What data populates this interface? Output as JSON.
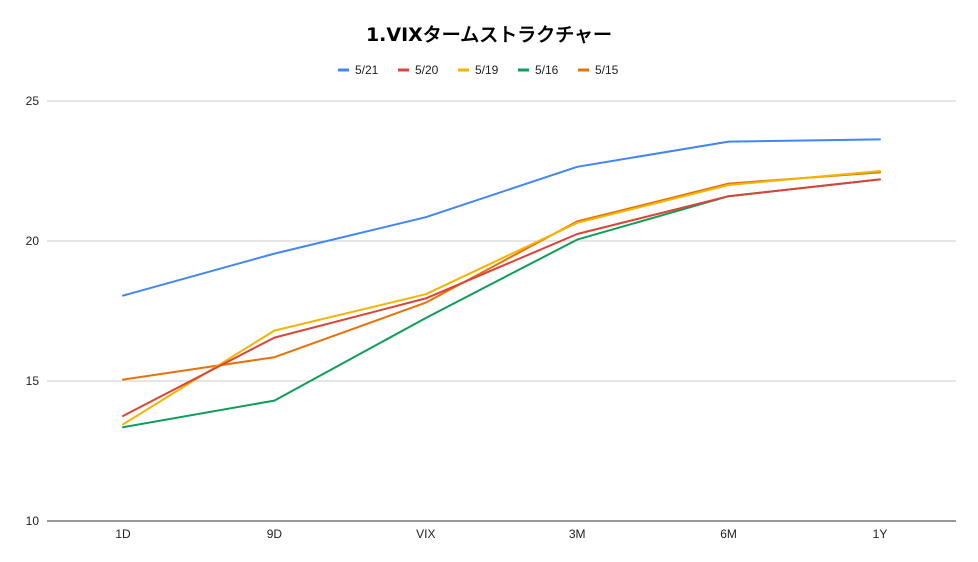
{
  "chart_data": {
    "type": "line",
    "title": "1.VIXタームストラクチャー",
    "xlabel": "",
    "ylabel": "",
    "categories": [
      "1D",
      "9D",
      "VIX",
      "3M",
      "6M",
      "1Y"
    ],
    "ylim": [
      10,
      25
    ],
    "yticks": [
      "10",
      "15",
      "20",
      "25"
    ],
    "grid": true,
    "legend_position": "top",
    "series": [
      {
        "name": "5/21",
        "color": "#4285F4",
        "values": [
          18.05,
          19.55,
          20.85,
          22.65,
          23.55,
          23.63
        ]
      },
      {
        "name": "5/20",
        "color": "#DB4437",
        "values": [
          13.75,
          16.55,
          17.95,
          20.25,
          21.6,
          22.2
        ]
      },
      {
        "name": "5/19",
        "color": "#F4B400",
        "values": [
          13.45,
          16.8,
          18.1,
          20.65,
          22.0,
          22.5
        ]
      },
      {
        "name": "5/16",
        "color": "#0F9D58",
        "values": [
          13.35,
          14.3,
          17.25,
          20.05,
          21.6,
          22.2
        ]
      },
      {
        "name": "5/15",
        "color": "#E8710A",
        "values": [
          15.05,
          15.85,
          17.8,
          20.7,
          22.05,
          22.45
        ]
      }
    ]
  }
}
